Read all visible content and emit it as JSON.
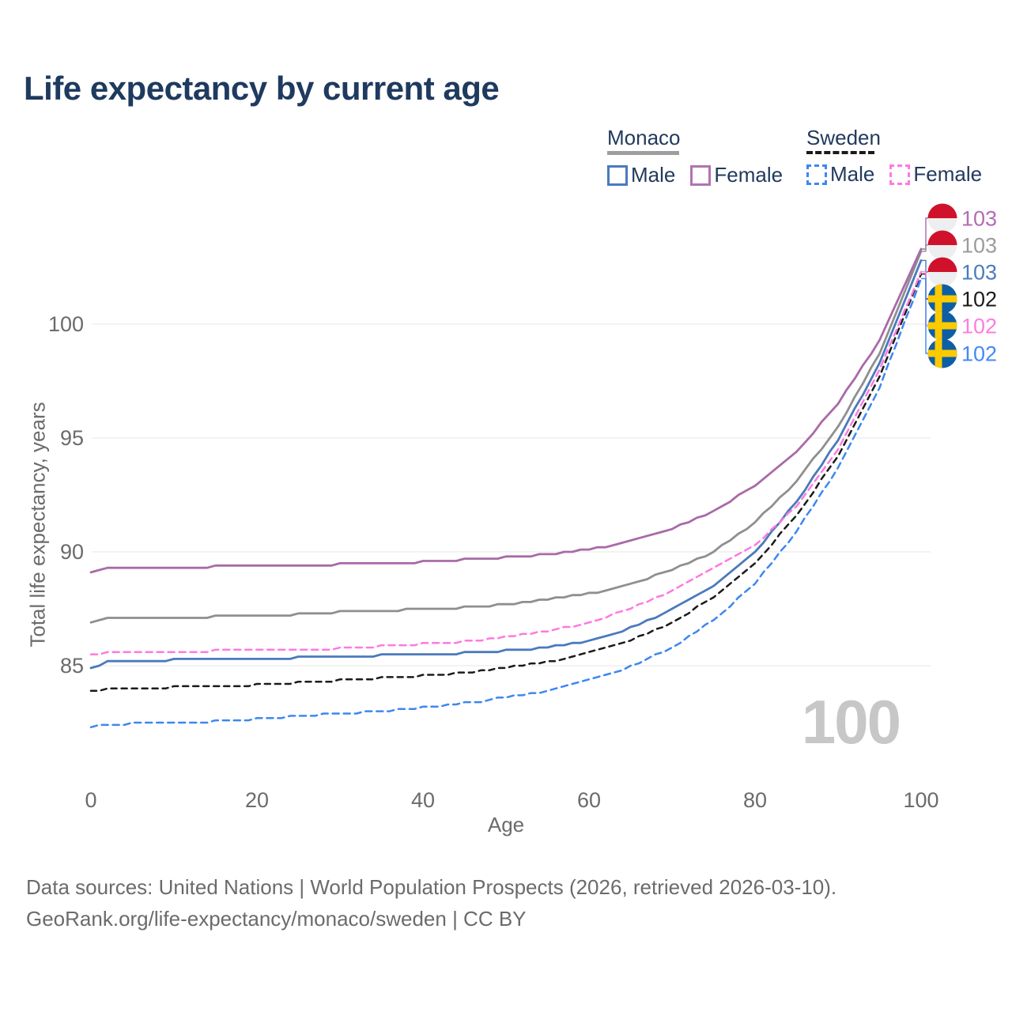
{
  "page": {
    "title": "Life expectancy by current age",
    "age_counter": "100",
    "footer": {
      "line1": "Data sources: United Nations | World Population Prospects (2026, retrieved 2026-03-10).",
      "line2": "GeoRank.org/life-expectancy/monaco/sweden | CC BY"
    }
  },
  "legend": {
    "groups": [
      {
        "label": "Monaco",
        "line_style": "solid",
        "line_color": "#9e9e9e",
        "items": [
          {
            "label": "Male",
            "color": "#4a7abc",
            "dashed": false
          },
          {
            "label": "Female",
            "color": "#b273b2",
            "dashed": false
          }
        ]
      },
      {
        "label": "Sweden",
        "line_style": "dashed",
        "line_color": "#1b1b1b",
        "items": [
          {
            "label": "Male",
            "color": "#3d87f2",
            "dashed": true
          },
          {
            "label": "Female",
            "color": "#ff79df",
            "dashed": true
          }
        ]
      }
    ]
  },
  "chart_data": {
    "type": "line",
    "title": "Life expectancy by current age",
    "xlabel": "Age",
    "ylabel": "Total life expectancy, years",
    "xticks": [
      0,
      20,
      40,
      60,
      80,
      100
    ],
    "yticks": [
      85,
      90,
      95,
      100
    ],
    "xlim": [
      0,
      100
    ],
    "ylim": [
      81.5,
      104
    ],
    "grid": "horizontal-only",
    "legend_position": "top-right",
    "x_keypoints": [
      0,
      2,
      5,
      10,
      15,
      20,
      25,
      30,
      35,
      40,
      45,
      50,
      55,
      60,
      65,
      70,
      75,
      80,
      85,
      90,
      95,
      100
    ],
    "series": [
      {
        "id": "monaco-female",
        "name": "Monaco Female",
        "country": "monaco",
        "color": "#a96aa7",
        "dashed": false,
        "dash": "",
        "width": 2.8,
        "z": 3,
        "end_label": "103",
        "end_label_color": "#b36cb3",
        "label_row": 0,
        "values": [
          89.1,
          89.25,
          89.3,
          89.3,
          89.35,
          89.35,
          89.4,
          89.45,
          89.5,
          89.55,
          89.65,
          89.75,
          89.9,
          90.1,
          90.45,
          91.0,
          91.8,
          92.9,
          94.4,
          96.5,
          99.3,
          103.3
        ]
      },
      {
        "id": "monaco",
        "name": "Monaco",
        "country": "monaco",
        "color": "#8f8f8f",
        "dashed": false,
        "dash": "",
        "width": 2.8,
        "z": 2,
        "end_label": "103",
        "end_label_color": "#9b9b9b",
        "label_row": 1,
        "values": [
          86.9,
          87.05,
          87.1,
          87.1,
          87.15,
          87.2,
          87.25,
          87.35,
          87.4,
          87.5,
          87.55,
          87.7,
          87.9,
          88.15,
          88.6,
          89.2,
          90.0,
          91.3,
          93.1,
          95.5,
          98.7,
          103.2
        ]
      },
      {
        "id": "monaco-male",
        "name": "Monaco Male",
        "country": "monaco",
        "color": "#4a7abc",
        "dashed": false,
        "dash": "",
        "width": 2.8,
        "z": 1,
        "end_label": "103",
        "end_label_color": "#4a7cbe",
        "label_row": 2,
        "values": [
          84.9,
          85.15,
          85.2,
          85.25,
          85.3,
          85.3,
          85.35,
          85.4,
          85.45,
          85.5,
          85.55,
          85.65,
          85.8,
          86.1,
          86.65,
          87.45,
          88.5,
          90.0,
          92.2,
          94.9,
          98.3,
          102.8
        ]
      },
      {
        "id": "sweden",
        "name": "Sweden",
        "country": "sweden",
        "color": "#1b1b1b",
        "dashed": true,
        "dash": "7 6",
        "width": 2.5,
        "z": 4,
        "end_label": "102",
        "end_label_color": "#1b1b1b",
        "label_row": 3,
        "values": [
          83.9,
          83.95,
          84.0,
          84.05,
          84.1,
          84.15,
          84.25,
          84.35,
          84.45,
          84.55,
          84.7,
          84.9,
          85.15,
          85.55,
          86.1,
          86.9,
          88.0,
          89.5,
          91.6,
          94.2,
          97.7,
          102.2
        ]
      },
      {
        "id": "sweden-female",
        "name": "Sweden Female",
        "country": "sweden",
        "color": "#ff79df",
        "dashed": true,
        "dash": "8 6",
        "width": 2.5,
        "z": 6,
        "end_label": "102",
        "end_label_color": "#ff7ce0",
        "label_row": 4,
        "values": [
          85.45,
          85.55,
          85.6,
          85.6,
          85.65,
          85.65,
          85.7,
          85.75,
          85.85,
          85.95,
          86.05,
          86.25,
          86.5,
          86.9,
          87.5,
          88.3,
          89.3,
          90.3,
          92.0,
          94.5,
          98.0,
          102.3
        ]
      },
      {
        "id": "sweden-male",
        "name": "Sweden Male",
        "country": "sweden",
        "color": "#3d87f2",
        "dashed": true,
        "dash": "8 6",
        "width": 2.5,
        "z": 5,
        "end_label": "102",
        "end_label_color": "#4289f5",
        "label_row": 5,
        "values": [
          82.3,
          82.4,
          82.45,
          82.5,
          82.55,
          82.65,
          82.8,
          82.9,
          83.0,
          83.15,
          83.35,
          83.6,
          83.9,
          84.35,
          84.95,
          85.8,
          87.0,
          88.6,
          90.9,
          93.7,
          97.2,
          102.0
        ]
      }
    ],
    "flag_colors": {
      "monaco": {
        "top": "#d0112b",
        "bottom": "#eeeef0"
      },
      "sweden": {
        "field": "#0d5ea5",
        "cross": "#fdca00"
      }
    },
    "end_label_rows_y": [
      276,
      310,
      344,
      378,
      412,
      447
    ],
    "colors": {
      "grid": "#e7e7e7",
      "axis_text": "#6b6b6b",
      "title_text": "#1f3a5f",
      "watermark": "#c7c7c7"
    }
  }
}
